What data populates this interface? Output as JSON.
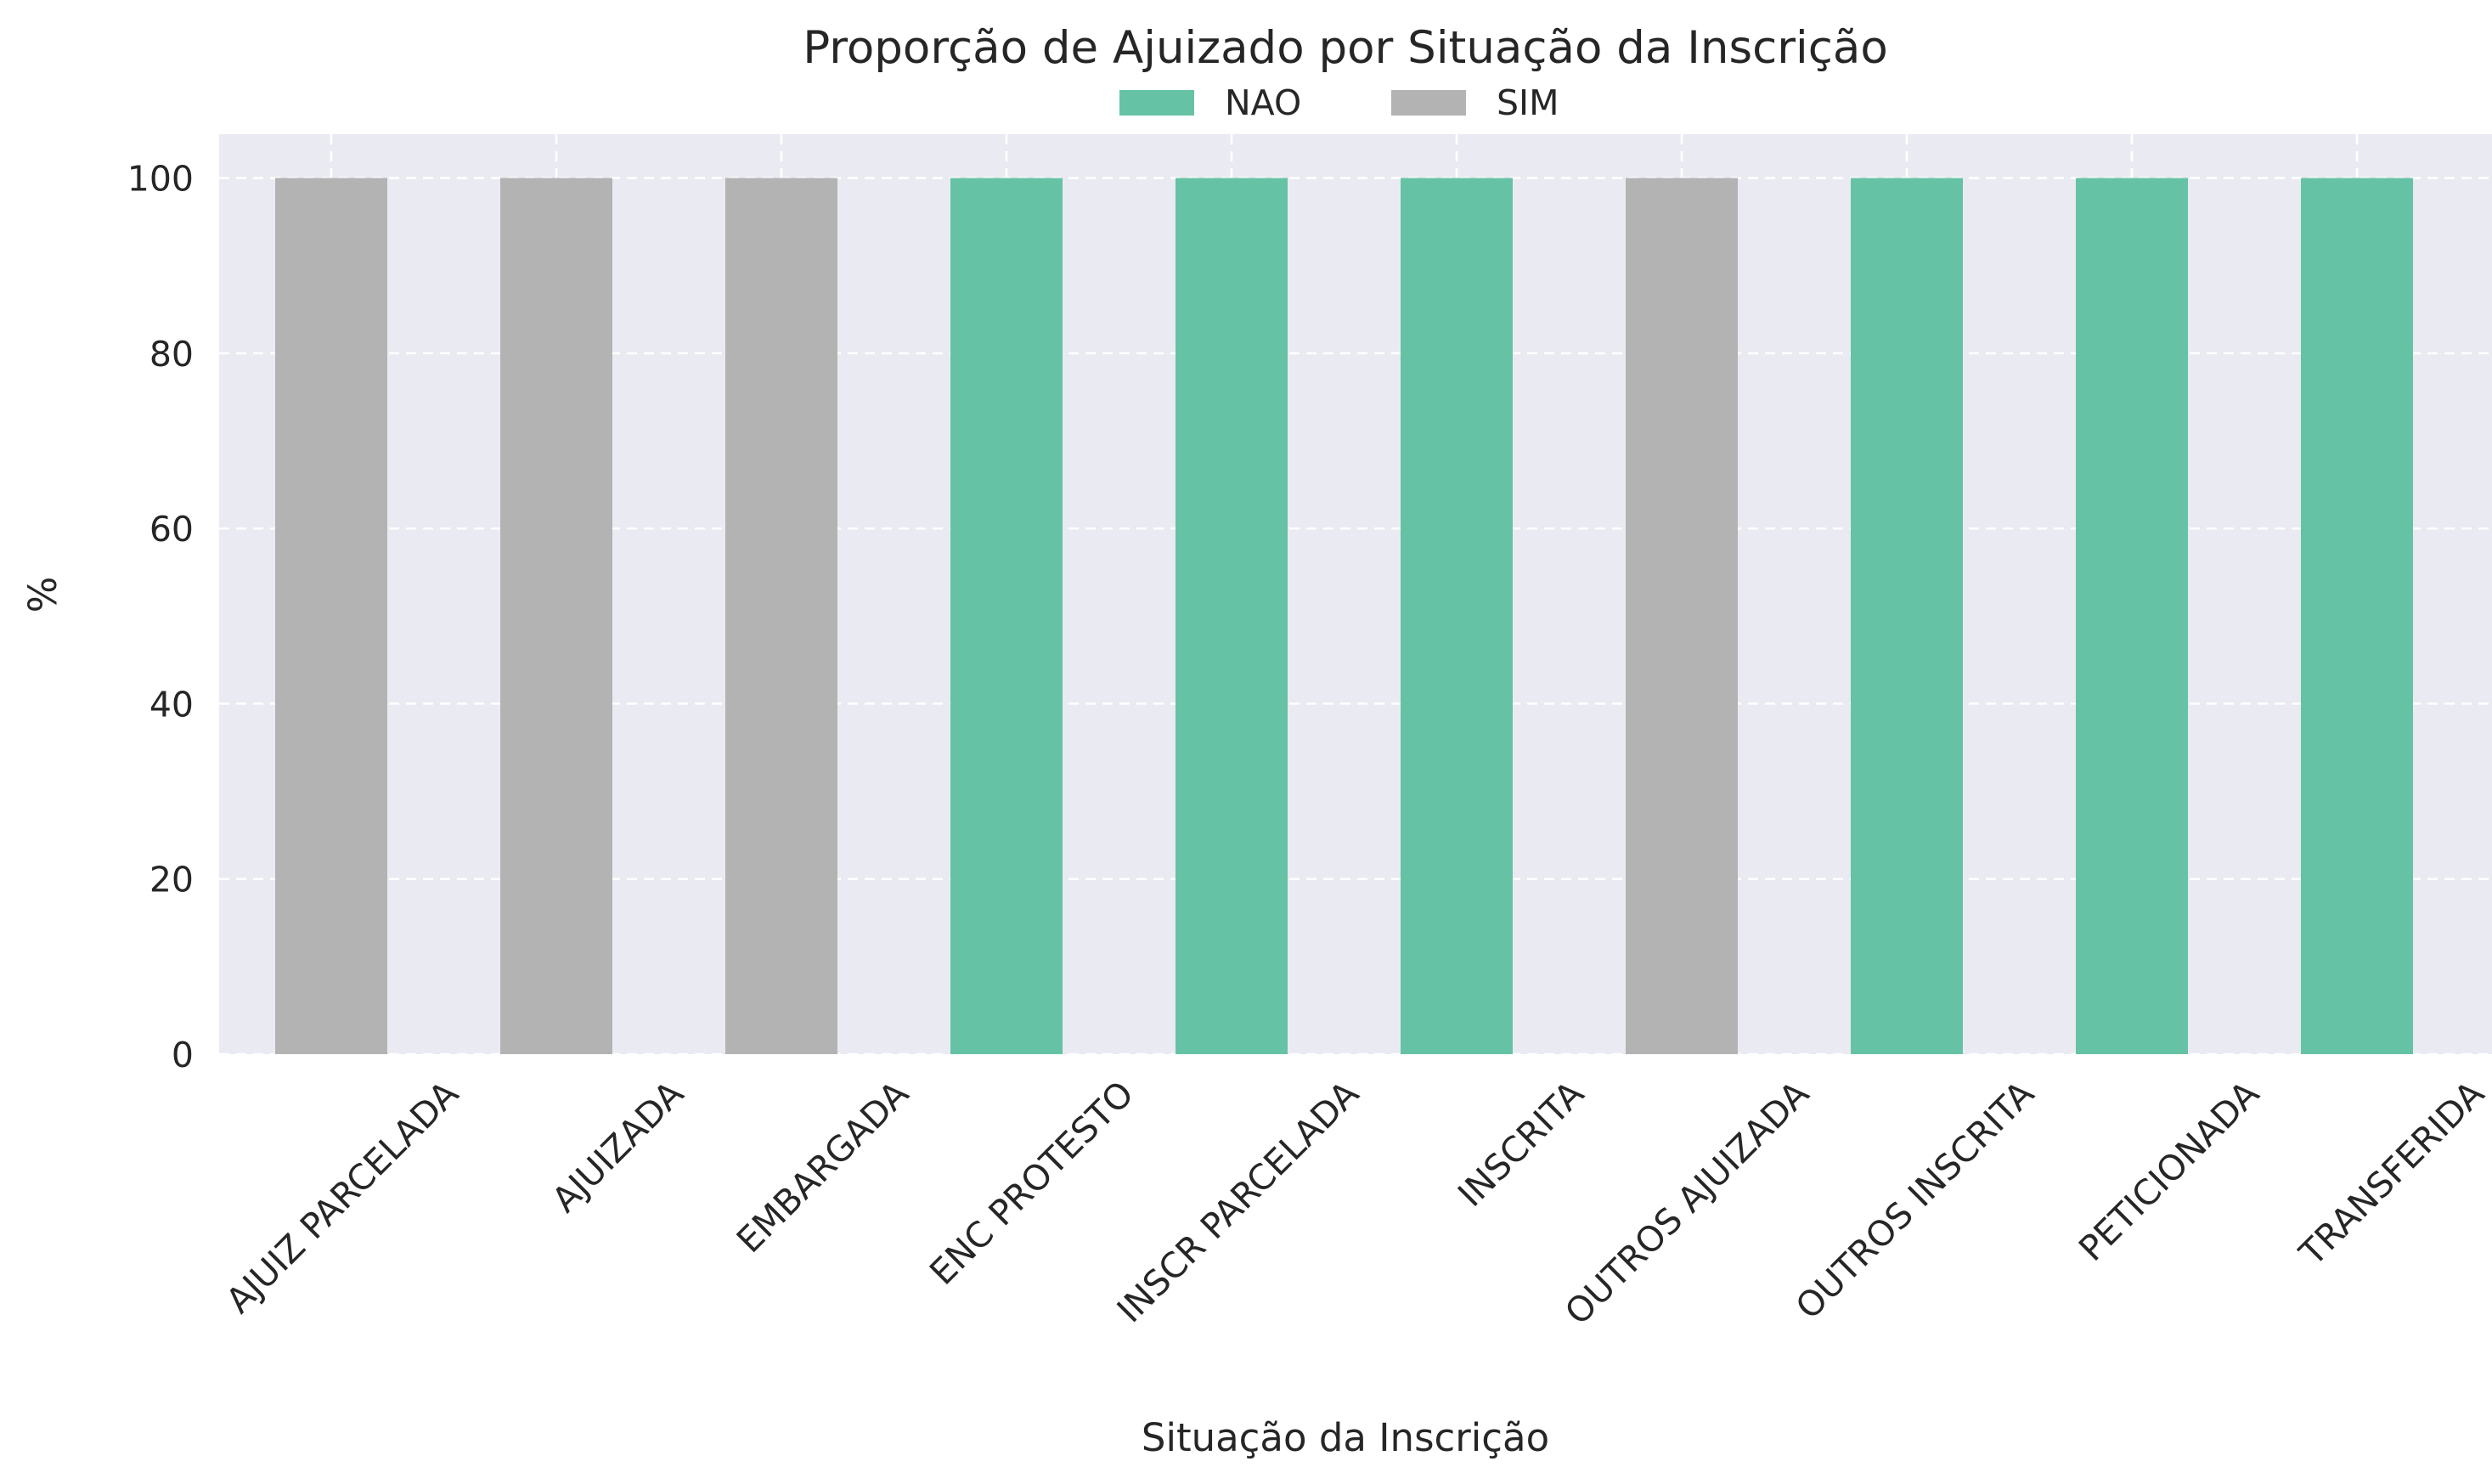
{
  "chart_data": {
    "type": "bar",
    "stacked": true,
    "title": "Proporção de Ajuizado por Situação da Inscrição",
    "xlabel": "Situação da Inscrição",
    "ylabel": "%",
    "ylim": [
      0,
      105
    ],
    "yticks": [
      0,
      20,
      40,
      60,
      80,
      100
    ],
    "grid": true,
    "legend": {
      "placement": "top-center",
      "columns": 2
    },
    "categories": [
      "AJUIZ PARCELADA",
      "AJUIZADA",
      "EMBARGADA",
      "ENC PROTESTO",
      "INSCR PARCELADA",
      "INSCRITA",
      "OUTROS AJUIZADA",
      "OUTROS INSCRITA",
      "PETICIONADA",
      "TRANSFERIDA"
    ],
    "series": [
      {
        "name": "NAO",
        "color": "#66c2a5",
        "values": [
          0,
          0,
          0,
          100,
          100,
          100,
          0,
          100,
          100,
          100
        ]
      },
      {
        "name": "SIM",
        "color": "#b3b3b3",
        "values": [
          100,
          100,
          100,
          0,
          0,
          0,
          100,
          0,
          0,
          0
        ]
      }
    ]
  }
}
